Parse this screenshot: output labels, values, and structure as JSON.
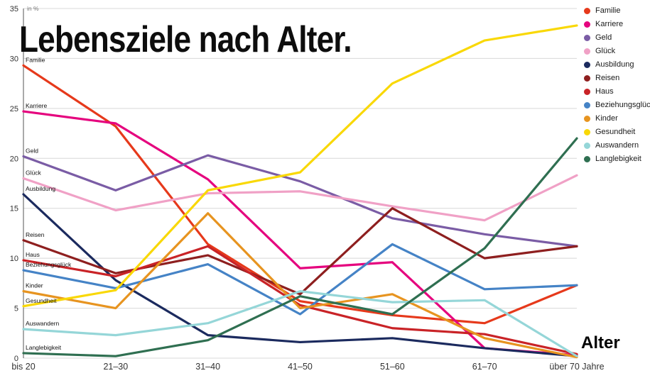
{
  "title": "Lebensziele nach Alter.",
  "y_axis_unit_label": "in %",
  "x_axis_label": "Alter",
  "chart_data": {
    "type": "line",
    "title": "Lebensziele nach Alter.",
    "ylabel": "in %",
    "xlabel": "Alter",
    "ylim": [
      0,
      35
    ],
    "yticks": [
      0,
      5,
      10,
      15,
      20,
      25,
      30,
      35
    ],
    "grid": true,
    "legend_position": "top-right",
    "categories": [
      "bis 20",
      "21–30",
      "31–40",
      "41–50",
      "51–60",
      "61–70",
      "über 70 Jahre"
    ],
    "series": [
      {
        "name": "Familie",
        "color": "#e6391b",
        "values": [
          29.3,
          23.2,
          11.4,
          5.7,
          4.3,
          3.5,
          7.3
        ]
      },
      {
        "name": "Karriere",
        "color": "#e5047e",
        "values": [
          24.7,
          23.5,
          17.9,
          9.0,
          9.6,
          1.0,
          0.3
        ]
      },
      {
        "name": "Geld",
        "color": "#7a5ca5",
        "values": [
          20.2,
          16.8,
          20.3,
          17.7,
          14.0,
          12.4,
          11.2
        ]
      },
      {
        "name": "Glück",
        "color": "#f0a1c6",
        "values": [
          18.0,
          14.8,
          16.5,
          16.7,
          15.2,
          13.8,
          18.3
        ]
      },
      {
        "name": "Ausbildung",
        "color": "#1b2a5e",
        "values": [
          16.4,
          7.8,
          2.3,
          1.6,
          2.0,
          1.0,
          0.2
        ]
      },
      {
        "name": "Reisen",
        "color": "#8e1f1f",
        "values": [
          11.8,
          8.5,
          10.3,
          6.4,
          15.0,
          10.0,
          11.2
        ]
      },
      {
        "name": "Haus",
        "color": "#c92327",
        "values": [
          9.8,
          8.2,
          11.2,
          5.3,
          3.0,
          2.4,
          0.4
        ]
      },
      {
        "name": "Beziehungsglück",
        "color": "#4583c6",
        "values": [
          8.8,
          7.0,
          9.4,
          4.4,
          11.4,
          6.9,
          7.3
        ]
      },
      {
        "name": "Kinder",
        "color": "#e79420",
        "values": [
          6.7,
          5.0,
          14.5,
          5.0,
          6.4,
          2.0,
          0.1
        ]
      },
      {
        "name": "Gesundheit",
        "color": "#f9d806",
        "values": [
          5.2,
          6.8,
          16.8,
          18.6,
          27.5,
          31.8,
          33.3
        ]
      },
      {
        "name": "Auswandern",
        "color": "#95d6d8",
        "values": [
          2.9,
          2.3,
          3.5,
          6.7,
          5.6,
          5.8,
          0.2
        ]
      },
      {
        "name": "Langlebigkeit",
        "color": "#2f6f51",
        "values": [
          0.5,
          0.2,
          1.8,
          6.2,
          4.4,
          11.0,
          22.0
        ]
      }
    ]
  }
}
